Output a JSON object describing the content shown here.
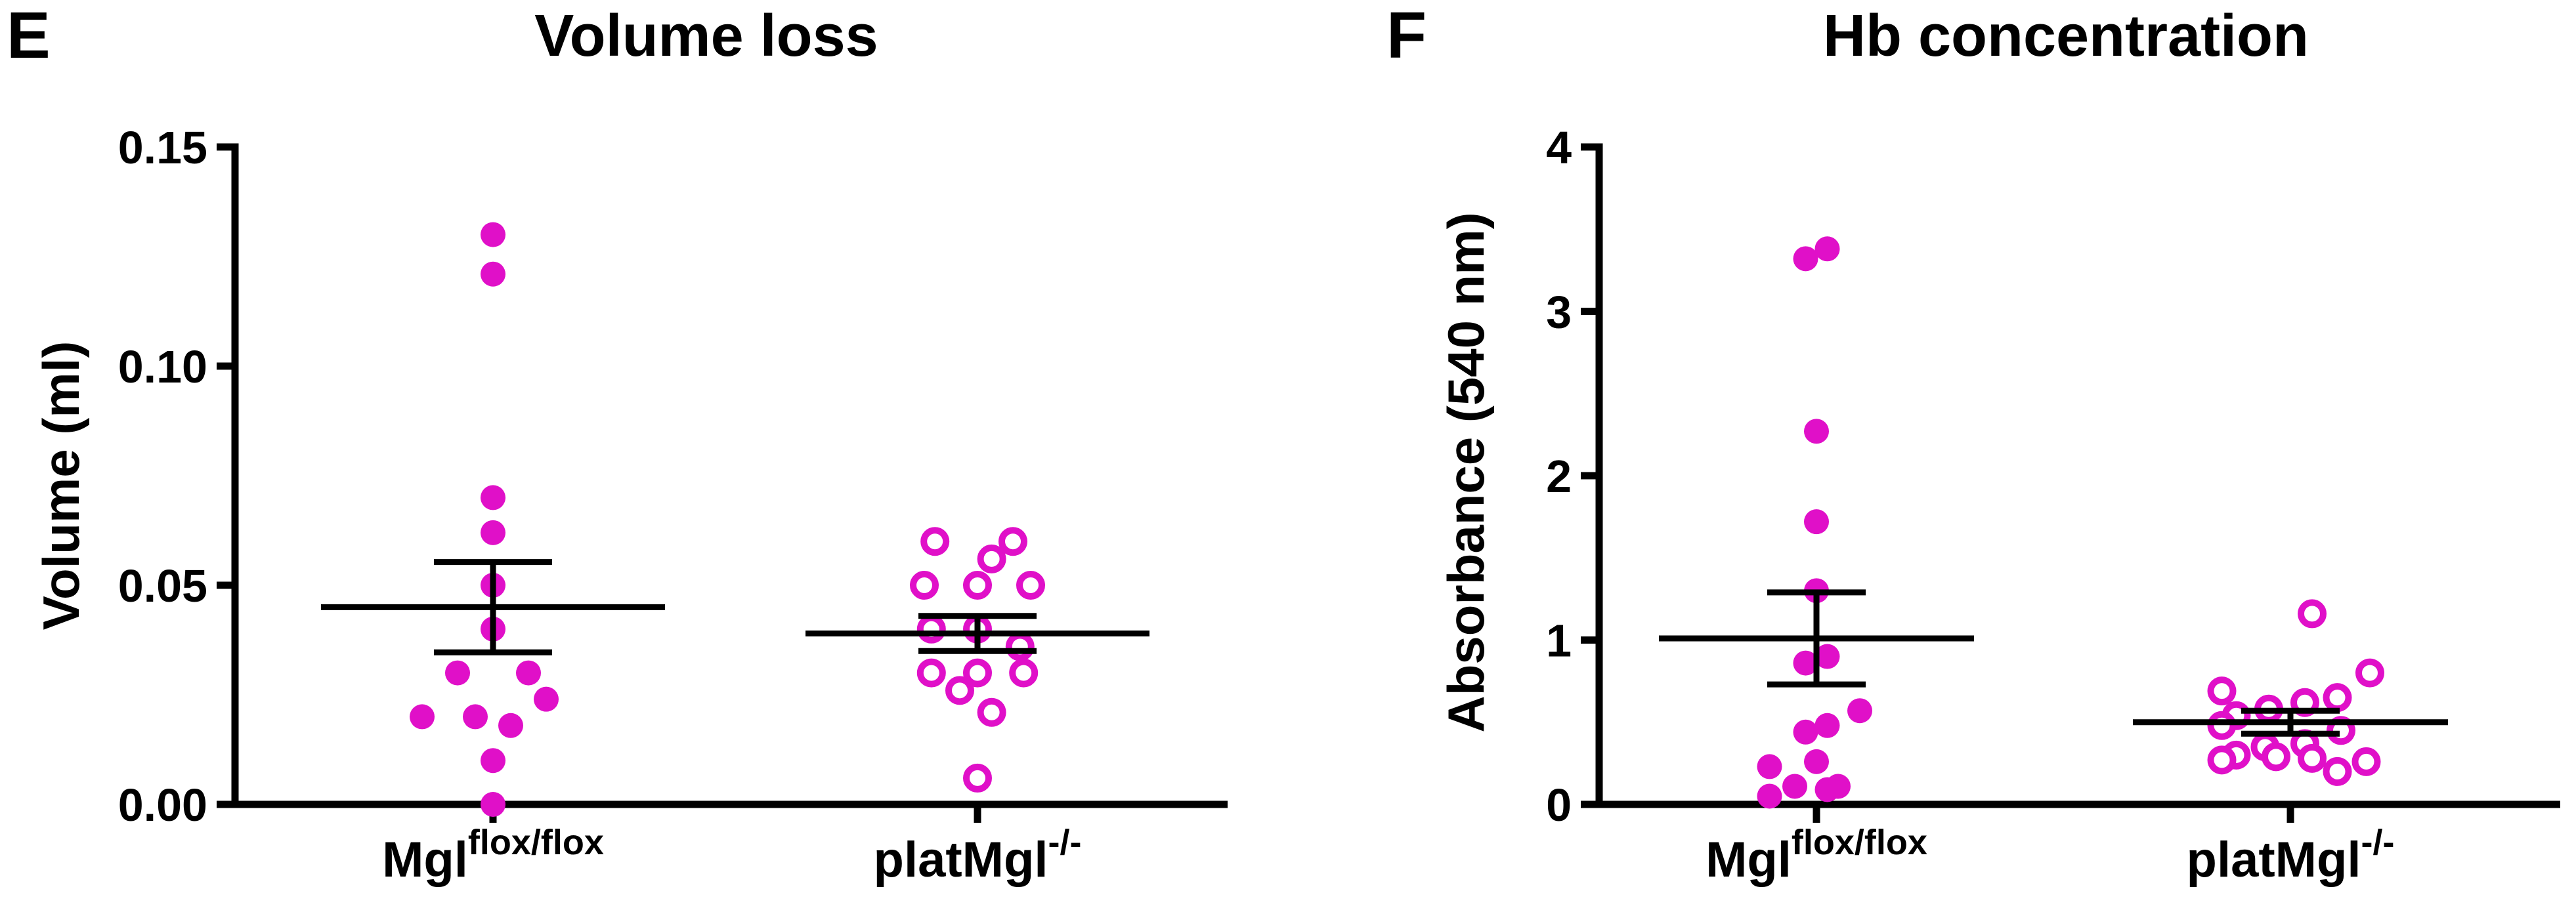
{
  "chart_data": [
    {
      "type": "scatter",
      "panel": "E",
      "title": "Volume loss",
      "xlabel": "",
      "ylabel": "Volume (ml)",
      "ylim": [
        0,
        0.15
      ],
      "yticks": [
        "0.00",
        "0.05",
        "0.10",
        "0.15"
      ],
      "ytick_values": [
        0,
        0.05,
        0.1,
        0.15
      ],
      "categories": [
        {
          "base": "Mgl",
          "sup": "flox/flox"
        },
        {
          "base": "platMgl",
          "sup": "-/-"
        }
      ],
      "series": [
        {
          "name": "Mgl flox/flox",
          "marker": "filled",
          "color": "#e010c8",
          "values": [
            0.13,
            0.121,
            0.07,
            0.062,
            0.05,
            0.04,
            0.03,
            0.03,
            0.024,
            0.02,
            0.02,
            0.018,
            0.01,
            0.0
          ],
          "mean": 0.045,
          "sem": 0.0103
        },
        {
          "name": "platMgl -/-",
          "marker": "open",
          "color": "#e010c8",
          "values": [
            0.06,
            0.06,
            0.056,
            0.05,
            0.05,
            0.05,
            0.04,
            0.04,
            0.036,
            0.03,
            0.03,
            0.03,
            0.026,
            0.021,
            0.006
          ],
          "mean": 0.039,
          "sem": 0.004
        }
      ]
    },
    {
      "type": "scatter",
      "panel": "F",
      "title": "Hb concentration",
      "xlabel": "",
      "ylabel": "Absorbance (540 nm)",
      "ylim": [
        0,
        4
      ],
      "yticks": [
        "0",
        "1",
        "2",
        "3",
        "4"
      ],
      "ytick_values": [
        0,
        1,
        2,
        3,
        4
      ],
      "categories": [
        {
          "base": "Mgl",
          "sup": "flox/flox"
        },
        {
          "base": "platMgl",
          "sup": "-/-"
        }
      ],
      "series": [
        {
          "name": "Mgl flox/flox",
          "marker": "filled",
          "color": "#e010c8",
          "values": [
            3.38,
            3.32,
            2.27,
            1.72,
            1.3,
            0.9,
            0.86,
            0.57,
            0.48,
            0.44,
            0.26,
            0.23,
            0.11,
            0.11,
            0.09,
            0.05
          ],
          "mean": 1.01,
          "sem": 0.28
        },
        {
          "name": "platMgl -/-",
          "marker": "open",
          "color": "#e010c8",
          "values": [
            1.16,
            0.8,
            0.69,
            0.65,
            0.62,
            0.58,
            0.54,
            0.48,
            0.45,
            0.37,
            0.35,
            0.3,
            0.29,
            0.28,
            0.27,
            0.26,
            0.2
          ],
          "mean": 0.5,
          "sem": 0.07
        }
      ]
    }
  ]
}
